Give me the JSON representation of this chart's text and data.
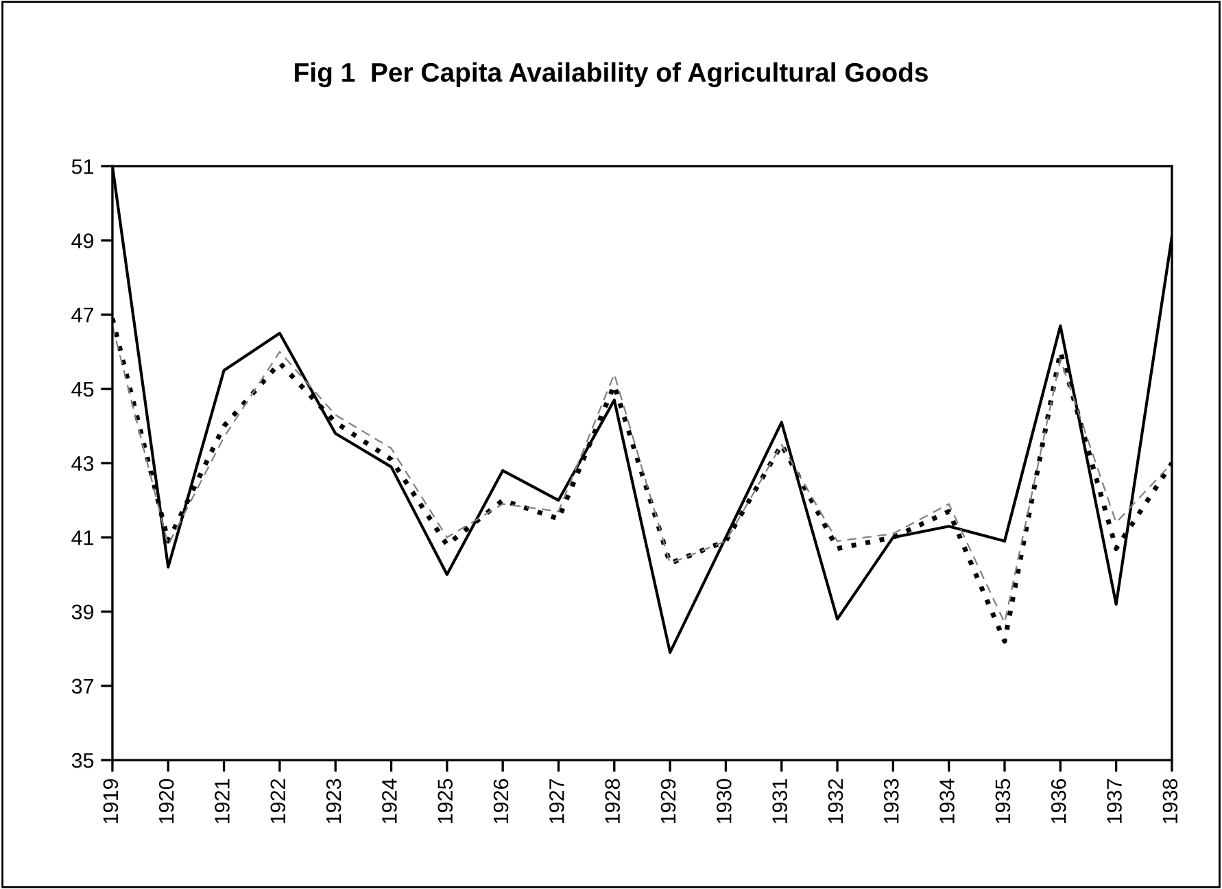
{
  "chart_data": {
    "type": "line",
    "title": "Fig 1  Per Capita Availability of Agricultural Goods",
    "categories": [
      "1919",
      "1920",
      "1921",
      "1922",
      "1923",
      "1924",
      "1925",
      "1926",
      "1927",
      "1928",
      "1929",
      "1930",
      "1931",
      "1932",
      "1933",
      "1934",
      "1935",
      "1936",
      "1937",
      "1938"
    ],
    "series": [
      {
        "color": "#000000",
        "line_style": "solid",
        "values": [
          51.0,
          40.2,
          45.5,
          46.5,
          43.8,
          42.9,
          40.0,
          42.8,
          42.0,
          44.7,
          37.9,
          41.0,
          44.1,
          38.8,
          41.0,
          41.3,
          40.9,
          46.7,
          39.2,
          49.1
        ]
      },
      {
        "color": "#000000",
        "line_style": "dotted",
        "values": [
          46.9,
          40.9,
          44.0,
          45.7,
          44.1,
          43.1,
          40.8,
          42.0,
          41.5,
          45.1,
          40.3,
          40.9,
          43.5,
          40.7,
          41.0,
          41.7,
          38.2,
          46.0,
          40.7,
          43.0
        ]
      },
      {
        "color": "#808080",
        "line_style": "dashed",
        "values": [
          46.7,
          40.8,
          43.7,
          46.0,
          44.3,
          43.4,
          41.0,
          41.9,
          41.7,
          45.4,
          40.3,
          40.9,
          43.5,
          40.9,
          41.1,
          41.9,
          38.7,
          45.8,
          41.4,
          43.0
        ]
      }
    ],
    "ylim": [
      35,
      51
    ],
    "yticks": [
      35,
      37,
      39,
      41,
      43,
      45,
      47,
      49,
      51
    ],
    "grid": false,
    "legend": false,
    "marker": "none"
  }
}
